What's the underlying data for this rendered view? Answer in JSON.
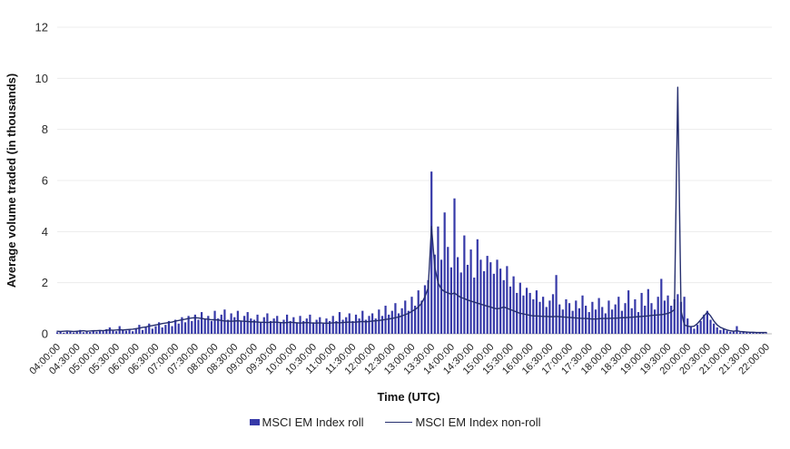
{
  "chart_data": {
    "type": "bar",
    "title": "",
    "xlabel": "Time (UTC)",
    "ylabel": "Average volume traded (in thousands)",
    "ylim": [
      0,
      12
    ],
    "yticks": [
      0,
      2,
      4,
      6,
      8,
      10,
      12
    ],
    "grid": "horizontal-only",
    "legend_position": "bottom-center",
    "x_interval_minutes": 5,
    "x_tick_labels": [
      "04:00:00",
      "04:30:00",
      "05:00:00",
      "05:30:00",
      "06:00:00",
      "06:30:00",
      "07:00:00",
      "07:30:00",
      "08:00:00",
      "08:30:00",
      "09:00:00",
      "09:30:00",
      "10:00:00",
      "10:30:00",
      "11:00:00",
      "11:30:00",
      "12:00:00",
      "12:30:00",
      "13:00:00",
      "13:30:00",
      "14:00:00",
      "14:30:00",
      "15:00:00",
      "15:30:00",
      "16:00:00",
      "16:30:00",
      "17:00:00",
      "17:30:00",
      "18:00:00",
      "18:30:00",
      "19:00:00",
      "19:30:00",
      "20:00:00",
      "20:30:00",
      "21:00:00",
      "21:30:00",
      "22:00:00"
    ],
    "colors": {
      "bar": "#3639a8",
      "line": "#262f6e",
      "grid": "#ececec",
      "axis_line": "#bdbdbd",
      "text": "#212121"
    },
    "series": [
      {
        "name": "MSCI EM Index roll",
        "type": "bar",
        "values": [
          0.06,
          0.1,
          0.04,
          0.08,
          0.12,
          0.05,
          0.09,
          0.15,
          0.06,
          0.1,
          0.07,
          0.12,
          0.08,
          0.14,
          0.1,
          0.18,
          0.25,
          0.12,
          0.1,
          0.3,
          0.15,
          0.12,
          0.18,
          0.1,
          0.2,
          0.35,
          0.15,
          0.25,
          0.4,
          0.2,
          0.3,
          0.45,
          0.25,
          0.35,
          0.5,
          0.3,
          0.55,
          0.4,
          0.65,
          0.45,
          0.7,
          0.5,
          0.75,
          0.55,
          0.85,
          0.6,
          0.7,
          0.5,
          0.9,
          0.6,
          0.75,
          0.95,
          0.55,
          0.8,
          0.65,
          0.9,
          0.5,
          0.7,
          0.85,
          0.6,
          0.55,
          0.75,
          0.45,
          0.65,
          0.8,
          0.5,
          0.6,
          0.7,
          0.45,
          0.55,
          0.75,
          0.5,
          0.65,
          0.45,
          0.7,
          0.5,
          0.6,
          0.75,
          0.45,
          0.55,
          0.65,
          0.4,
          0.6,
          0.5,
          0.7,
          0.5,
          0.85,
          0.55,
          0.65,
          0.8,
          0.5,
          0.75,
          0.6,
          0.9,
          0.55,
          0.7,
          0.8,
          0.6,
          0.95,
          0.7,
          1.1,
          0.75,
          0.9,
          1.2,
          0.8,
          1.0,
          1.3,
          0.9,
          1.45,
          1.1,
          1.7,
          1.3,
          1.9,
          2.1,
          6.35,
          3.1,
          4.2,
          2.9,
          4.75,
          3.4,
          2.6,
          5.3,
          3.0,
          2.4,
          3.85,
          2.7,
          3.3,
          2.2,
          3.7,
          2.9,
          2.45,
          3.05,
          2.8,
          2.35,
          2.9,
          2.55,
          2.1,
          2.65,
          1.85,
          2.25,
          1.6,
          2.0,
          1.5,
          1.8,
          1.6,
          1.35,
          1.7,
          1.25,
          1.45,
          1.05,
          1.3,
          1.55,
          2.3,
          1.15,
          0.95,
          1.35,
          1.2,
          0.9,
          1.3,
          1.0,
          1.5,
          1.1,
          0.85,
          1.25,
          0.95,
          1.4,
          1.05,
          0.8,
          1.3,
          0.95,
          1.15,
          1.45,
          0.9,
          1.2,
          1.7,
          1.0,
          1.35,
          0.85,
          1.6,
          1.1,
          1.75,
          1.2,
          0.95,
          1.45,
          2.15,
          1.3,
          1.5,
          1.1,
          1.35,
          1.55,
          1.25,
          1.45,
          0.6,
          0.3,
          0.2,
          0.35,
          0.5,
          0.75,
          0.9,
          0.55,
          0.4,
          0.25,
          0.15,
          0.2,
          0.12,
          0.08,
          0.1,
          0.3,
          0.06,
          0.08,
          0.05,
          0.04,
          0.06,
          0.03,
          0.04,
          0.03,
          0.02
        ]
      },
      {
        "name": "MSCI EM Index non-roll",
        "type": "line",
        "values": [
          0.1,
          0.09,
          0.1,
          0.11,
          0.1,
          0.09,
          0.1,
          0.11,
          0.12,
          0.1,
          0.11,
          0.12,
          0.12,
          0.13,
          0.12,
          0.14,
          0.15,
          0.14,
          0.15,
          0.16,
          0.15,
          0.16,
          0.17,
          0.18,
          0.2,
          0.22,
          0.25,
          0.27,
          0.3,
          0.32,
          0.35,
          0.37,
          0.4,
          0.42,
          0.44,
          0.46,
          0.5,
          0.52,
          0.55,
          0.57,
          0.6,
          0.62,
          0.63,
          0.62,
          0.6,
          0.58,
          0.57,
          0.55,
          0.55,
          0.54,
          0.52,
          0.5,
          0.5,
          0.49,
          0.5,
          0.51,
          0.5,
          0.49,
          0.48,
          0.47,
          0.47,
          0.46,
          0.45,
          0.45,
          0.44,
          0.45,
          0.46,
          0.45,
          0.44,
          0.43,
          0.44,
          0.45,
          0.44,
          0.43,
          0.42,
          0.43,
          0.44,
          0.43,
          0.42,
          0.42,
          0.43,
          0.42,
          0.41,
          0.42,
          0.43,
          0.44,
          0.43,
          0.44,
          0.45,
          0.46,
          0.45,
          0.46,
          0.47,
          0.48,
          0.47,
          0.48,
          0.5,
          0.51,
          0.52,
          0.54,
          0.56,
          0.58,
          0.6,
          0.63,
          0.66,
          0.7,
          0.75,
          0.8,
          0.88,
          0.95,
          1.05,
          1.2,
          1.45,
          1.8,
          4.2,
          2.6,
          2.0,
          1.75,
          1.65,
          1.6,
          1.55,
          1.6,
          1.5,
          1.42,
          1.38,
          1.32,
          1.28,
          1.24,
          1.2,
          1.16,
          1.12,
          1.08,
          1.05,
          1.0,
          0.98,
          1.0,
          1.05,
          1.0,
          0.95,
          0.9,
          0.85,
          0.8,
          0.78,
          0.75,
          0.72,
          0.7,
          0.7,
          0.69,
          0.68,
          0.68,
          0.67,
          0.67,
          0.68,
          0.67,
          0.66,
          0.65,
          0.64,
          0.63,
          0.62,
          0.61,
          0.6,
          0.6,
          0.59,
          0.58,
          0.58,
          0.59,
          0.6,
          0.6,
          0.6,
          0.61,
          0.61,
          0.62,
          0.63,
          0.63,
          0.64,
          0.65,
          0.66,
          0.67,
          0.68,
          0.69,
          0.7,
          0.72,
          0.73,
          0.74,
          0.75,
          0.77,
          0.8,
          0.85,
          0.95,
          9.65,
          0.9,
          0.35,
          0.3,
          0.28,
          0.3,
          0.4,
          0.55,
          0.7,
          0.85,
          0.7,
          0.5,
          0.35,
          0.25,
          0.2,
          0.15,
          0.12,
          0.1,
          0.12,
          0.09,
          0.08,
          0.07,
          0.06,
          0.06,
          0.05,
          0.05,
          0.05,
          0.05
        ]
      }
    ]
  },
  "legend": {
    "roll_label": "MSCI EM Index roll",
    "nonroll_label": "MSCI EM Index non-roll"
  }
}
